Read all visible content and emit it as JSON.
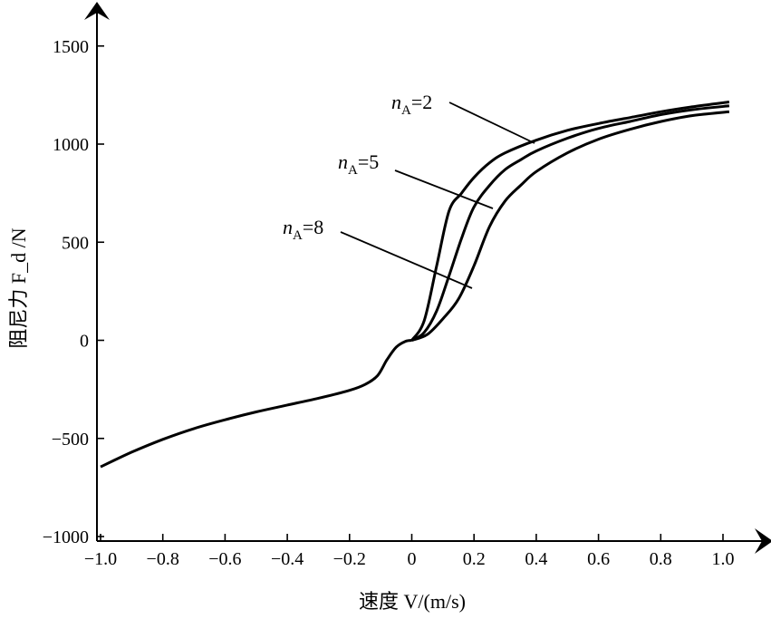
{
  "chart_data": {
    "type": "line",
    "xlabel": "速度 V/(m/s)",
    "ylabel": "阻尼力 F_d /N",
    "xlim": [
      -1.0,
      1.05
    ],
    "ylim": [
      -1000,
      1500
    ],
    "x_ticks": [
      "−1.0",
      "−0.8",
      "−0.6",
      "−0.4",
      "−0.2",
      "0",
      "0.2",
      "0.4",
      "0.6",
      "0.8",
      "1.0"
    ],
    "y_ticks": [
      "1500",
      "1000",
      "500",
      "0",
      "−500",
      "−1000"
    ],
    "grid": false,
    "shared_negative_branch": {
      "x": [
        -1.0,
        -0.9,
        -0.8,
        -0.7,
        -0.6,
        -0.5,
        -0.4,
        -0.3,
        -0.2,
        -0.15,
        -0.11,
        -0.08,
        -0.05,
        -0.02,
        0.0
      ],
      "y": [
        -645,
        -570,
        -505,
        -450,
        -405,
        -365,
        -330,
        -295,
        -255,
        -225,
        -180,
        -100,
        -35,
        -5,
        0
      ]
    },
    "series": [
      {
        "name": "nA=2",
        "x": [
          0.0,
          0.04,
          0.08,
          0.12,
          0.16,
          0.2,
          0.25,
          0.3,
          0.4,
          0.5,
          0.6,
          0.7,
          0.8,
          0.9,
          1.02
        ],
        "y": [
          0,
          100,
          380,
          660,
          750,
          830,
          905,
          955,
          1020,
          1070,
          1105,
          1135,
          1165,
          1190,
          1215
        ]
      },
      {
        "name": "nA=5",
        "x": [
          0.0,
          0.04,
          0.08,
          0.12,
          0.16,
          0.2,
          0.25,
          0.3,
          0.35,
          0.4,
          0.5,
          0.6,
          0.7,
          0.8,
          0.9,
          1.02
        ],
        "y": [
          0,
          40,
          150,
          330,
          520,
          680,
          790,
          870,
          920,
          965,
          1030,
          1080,
          1115,
          1150,
          1175,
          1195
        ]
      },
      {
        "name": "nA=8",
        "x": [
          0.0,
          0.05,
          0.1,
          0.15,
          0.2,
          0.25,
          0.3,
          0.35,
          0.4,
          0.5,
          0.6,
          0.7,
          0.8,
          0.9,
          1.02
        ],
        "y": [
          0,
          30,
          110,
          210,
          380,
          580,
          710,
          790,
          860,
          955,
          1025,
          1075,
          1115,
          1145,
          1165
        ]
      }
    ],
    "annotations": [
      {
        "var": "n",
        "sub": "A",
        "value": "=2"
      },
      {
        "var": "n",
        "sub": "A",
        "value": "=5"
      },
      {
        "var": "n",
        "sub": "A",
        "value": "=8"
      }
    ]
  }
}
